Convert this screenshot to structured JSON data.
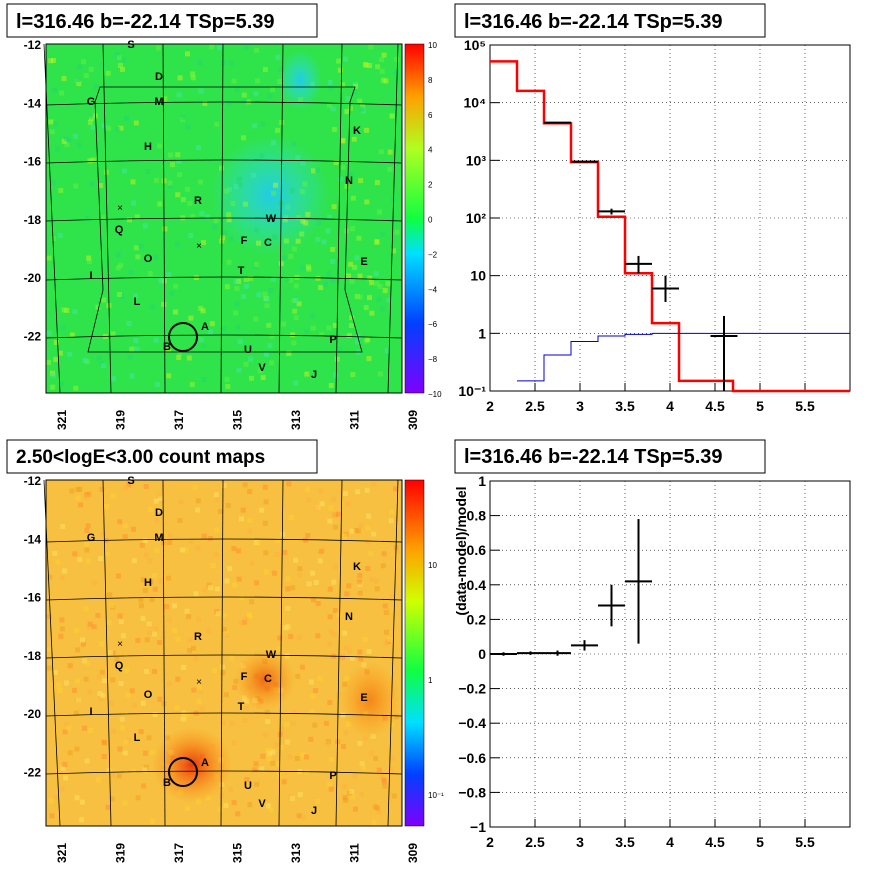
{
  "panels": {
    "tl": {
      "title": "l=316.46 b=-22.14 TSp=5.39",
      "colorbar_ticks": [
        "10",
        "8",
        "6",
        "4",
        "2",
        "0",
        "−2",
        "−4",
        "−6",
        "−8",
        "−10"
      ],
      "x_ticks": [
        "321",
        "319",
        "317",
        "315",
        "313",
        "311",
        "309"
      ],
      "y_ticks": [
        "-12",
        "-14",
        "-16",
        "-18",
        "-20",
        "-22"
      ]
    },
    "bl": {
      "title": "2.50<logE<3.00 count maps",
      "colorbar_ticks": [
        "10",
        "1",
        "10⁻¹"
      ],
      "x_ticks": [
        "321",
        "319",
        "317",
        "315",
        "313",
        "311",
        "309"
      ],
      "y_ticks": [
        "-12",
        "-14",
        "-16",
        "-18",
        "-20",
        "-22"
      ]
    },
    "tr": {
      "title": "l=316.46 b=-22.14 TSp=5.39"
    },
    "br": {
      "title": "l=316.46 b=-22.14 TSp=5.39"
    }
  },
  "sky_labels": [
    "S",
    "D",
    "G",
    "M",
    "K",
    "H",
    "N",
    "R",
    "W",
    "Q",
    "F",
    "C",
    "O",
    "E",
    "T",
    "I",
    "L",
    "A",
    "B",
    "P",
    "U",
    "V",
    "J"
  ],
  "colors": {
    "model_line": "#ff0000",
    "background_line": "#0000cc",
    "data_points": "#000000",
    "source_circle": "#000000"
  },
  "chart_data": [
    {
      "type": "line",
      "panel": "tr",
      "title": "l=316.46 b=-22.14 TSp=5.39",
      "xlabel": "",
      "ylabel": "",
      "log_y": true,
      "xlim": [
        2,
        6
      ],
      "ylim": [
        0.1,
        100000
      ],
      "x_ticks": [
        "2",
        "2.5",
        "3",
        "3.5",
        "4",
        "4.5",
        "5",
        "5.5"
      ],
      "y_ticks": [
        "10⁻¹",
        "1",
        "10",
        "10²",
        "10³",
        "10⁴",
        "10⁵"
      ],
      "grid": true,
      "series": [
        {
          "kind": "step",
          "color": "#ff0000",
          "x_edges": [
            2,
            2.3,
            2.6,
            2.9,
            3.2,
            3.5,
            3.8,
            4.1,
            4.4,
            4.7,
            6
          ],
          "values": [
            52000,
            16000,
            4400,
            930,
            105,
            11,
            1.5,
            0.15,
            0.15,
            0.1
          ]
        },
        {
          "kind": "step",
          "color": "#0000cc",
          "x_edges": [
            2.3,
            2.6,
            2.9,
            3.2,
            3.5,
            3.8,
            4.1,
            4.4,
            4.7,
            6
          ],
          "values": [
            0.15,
            0.42,
            0.72,
            0.9,
            0.96,
            1,
            1,
            1,
            1
          ]
        },
        {
          "kind": "points",
          "color": "#000000",
          "x": [
            2.75,
            3.05,
            3.35,
            3.65,
            3.95,
            4.6
          ],
          "xerr": [
            0.15,
            0.15,
            0.15,
            0.15,
            0.15,
            0.15
          ],
          "y": [
            4500,
            950,
            130,
            16,
            6,
            0.9
          ],
          "ylow": [
            4450,
            930,
            115,
            11,
            3.5,
            0.1
          ],
          "yhigh": [
            4550,
            970,
            145,
            22,
            10,
            2
          ]
        }
      ]
    },
    {
      "type": "scatter",
      "panel": "br",
      "title": "l=316.46 b=-22.14 TSp=5.39",
      "xlabel": "",
      "ylabel": "(data-model)/model",
      "xlim": [
        2,
        6
      ],
      "ylim": [
        -1,
        1
      ],
      "x_ticks": [
        "2",
        "2.5",
        "3",
        "3.5",
        "4",
        "4.5",
        "5",
        "5.5"
      ],
      "y_ticks": [
        "−1",
        "−0.8",
        "−0.6",
        "−0.4",
        "−0.2",
        "0",
        "0.2",
        "0.4",
        "0.6",
        "0.8",
        "1"
      ],
      "grid": true,
      "series": [
        {
          "kind": "points",
          "color": "#000000",
          "x": [
            2.15,
            2.45,
            2.75,
            3.05,
            3.35,
            3.65
          ],
          "xerr": [
            0.15,
            0.15,
            0.15,
            0.15,
            0.15,
            0.15
          ],
          "y": [
            0,
            0.005,
            0.005,
            0.05,
            0.28,
            0.42
          ],
          "ylow": [
            -0.01,
            -0.005,
            -0.01,
            0.02,
            0.16,
            0.06
          ],
          "yhigh": [
            0.01,
            0.015,
            0.02,
            0.08,
            0.4,
            0.78
          ]
        }
      ]
    }
  ]
}
